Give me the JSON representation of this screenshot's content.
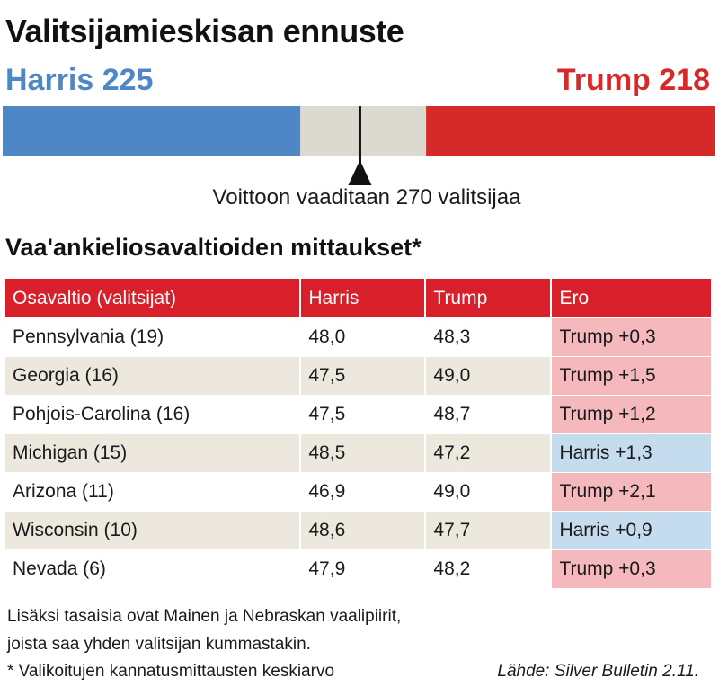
{
  "title": "Valitsijamieskisan ennuste",
  "harris_label": "Harris 225",
  "trump_label": "Trump 218",
  "threshold_label": "Voittoon vaaditaan 270 valitsijaa",
  "subtitle": "Vaa'ankieliosavaltioiden mittaukset*",
  "table": {
    "headers": [
      "Osavaltio (valitsijat)",
      "Harris",
      "Trump",
      "Ero"
    ],
    "rows": [
      {
        "state": "Pennsylvania (19)",
        "harris": "48,0",
        "trump": "48,3",
        "ero": "Trump +0,3",
        "leader": "trump"
      },
      {
        "state": "Georgia (16)",
        "harris": "47,5",
        "trump": "49,0",
        "ero": "Trump +1,5",
        "leader": "trump"
      },
      {
        "state": "Pohjois-Carolina (16)",
        "harris": "47,5",
        "trump": "48,7",
        "ero": "Trump +1,2",
        "leader": "trump"
      },
      {
        "state": "Michigan (15)",
        "harris": "48,5",
        "trump": "47,2",
        "ero": "Harris +1,3",
        "leader": "harris"
      },
      {
        "state": "Arizona (11)",
        "harris": "46,9",
        "trump": "49,0",
        "ero": "Trump +2,1",
        "leader": "trump"
      },
      {
        "state": "Wisconsin (10)",
        "harris": "48,6",
        "trump": "47,7",
        "ero": "Harris +0,9",
        "leader": "harris"
      },
      {
        "state": "Nevada (6)",
        "harris": "47,9",
        "trump": "48,2",
        "ero": "Trump +0,3",
        "leader": "trump"
      }
    ]
  },
  "footnote_1": "Lisäksi tasaisia ovat Mainen ja Nebraskan vaalipiirit,",
  "footnote_2": "joista saa yhden valitsijan kummastakin.",
  "footnote_3": "* Valikoitujen kannatusmittausten keskiarvo",
  "source": "Lähde: Silver Bulletin 2.11.",
  "colors": {
    "harris": "#4f86c6",
    "trump": "#d62a2a",
    "tossup": "#dcd9d0",
    "header_red": "#d81f2a",
    "trump_cell": "#f5b8bc",
    "harris_cell": "#c5dbee"
  },
  "chart_data": {
    "type": "bar",
    "title": "Valitsijamieskisan ennuste",
    "series": [
      {
        "name": "Harris",
        "values": [
          225
        ]
      },
      {
        "name": "Trump",
        "values": [
          218
        ]
      }
    ],
    "total_electors": 538,
    "tossup": 95,
    "threshold": 270,
    "xlim": [
      0,
      538
    ]
  }
}
